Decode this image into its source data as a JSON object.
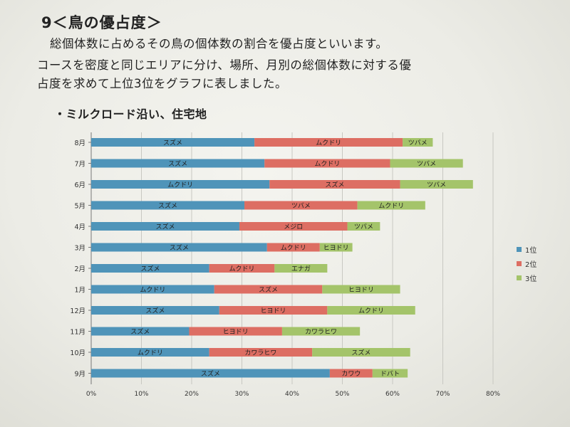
{
  "heading": "9＜鳥の優占度＞",
  "paragraph": [
    "総個体数に占めるその鳥の個体数の割合を優占度といいます。",
    "コースを密度と同じエリアに分け、場所、月別の総個体数に対する優",
    "占度を求めて上位3位をグラフに表しました。"
  ],
  "subtitle": "・ミルクロード沿い、住宅地",
  "colors": {
    "rank1": "#4f94b9",
    "rank2": "#dd6e63",
    "rank3": "#a4c46a"
  },
  "chart_data": {
    "type": "bar",
    "orientation": "horizontal",
    "stacked": true,
    "xlim": [
      0,
      80
    ],
    "xticks": [
      "0%",
      "10%",
      "20%",
      "30%",
      "40%",
      "50%",
      "60%",
      "70%",
      "80%"
    ],
    "grid": true,
    "legend_position": "right",
    "categories": [
      "8月",
      "7月",
      "6月",
      "5月",
      "4月",
      "3月",
      "2月",
      "1月",
      "12月",
      "11月",
      "10月",
      "9月"
    ],
    "series": [
      {
        "name": "1位",
        "values": [
          32.5,
          34.5,
          35.5,
          30.5,
          29.5,
          35,
          23.5,
          24.5,
          25.5,
          19.5,
          23.5,
          47.5
        ],
        "labels": [
          "スズメ",
          "スズメ",
          "ムクドリ",
          "スズメ",
          "スズメ",
          "スズメ",
          "スズメ",
          "ムクドリ",
          "スズメ",
          "スズメ",
          "ムクドリ",
          "スズメ"
        ]
      },
      {
        "name": "2位",
        "values": [
          29.5,
          25,
          26,
          22.5,
          21.5,
          10.5,
          13,
          21.5,
          21.5,
          18.5,
          20.5,
          8.5
        ],
        "labels": [
          "ムクドリ",
          "ムクドリ",
          "スズメ",
          "ツバメ",
          "メジロ",
          "ムクドリ",
          "ムクドリ",
          "スズメ",
          "ヒヨドリ",
          "ヒヨドリ",
          "カワラヒワ",
          "カワウ"
        ]
      },
      {
        "name": "3位",
        "values": [
          6,
          14.5,
          14.5,
          13.5,
          6.5,
          6.5,
          10.5,
          15.5,
          17.5,
          15.5,
          19.5,
          7
        ],
        "labels": [
          "ツバメ",
          "ツバメ",
          "ツバメ",
          "ムクドリ",
          "ツバメ",
          "ヒヨドリ",
          "エナガ",
          "ヒヨドリ",
          "ムクドリ",
          "カワラヒワ",
          "スズメ",
          "ドバト"
        ]
      }
    ]
  }
}
